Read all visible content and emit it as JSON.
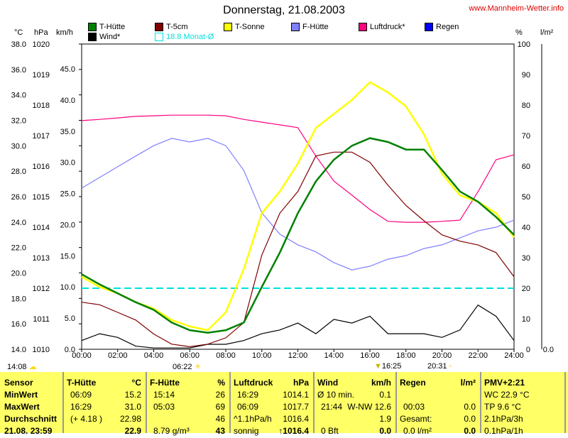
{
  "header": {
    "title": "Donnerstag, 21.08.2003",
    "site": "www.Mannheim-Wetter.info"
  },
  "legend": [
    {
      "label": "T-Hütte",
      "color": "#008000"
    },
    {
      "label": "T-5cm",
      "color": "#800000"
    },
    {
      "label": "T-Sonne",
      "color": "#ffff00"
    },
    {
      "label": "F-Hütte",
      "color": "#8080ff"
    },
    {
      "label": "Luftdruck*",
      "color": "#ff0080"
    },
    {
      "label": "Regen",
      "color": "#0000ff"
    },
    {
      "label": "Wind*",
      "color": "#000000"
    },
    {
      "label": "18.8 Monat-Ø",
      "color": "#00ffff"
    }
  ],
  "axis_units": {
    "c": "°C",
    "hpa": "hPa",
    "kmh": "km/h",
    "pct": "%",
    "rain": "l/m²"
  },
  "chart_data": {
    "type": "line",
    "title": "Donnerstag, 21.08.2003",
    "x_ticks": [
      "00:00",
      "02:00",
      "04:00",
      "06:00",
      "08:00",
      "10:00",
      "12:00",
      "14:00",
      "16:00",
      "18:00",
      "20:00",
      "22:00",
      "24:00"
    ],
    "x_hours": [
      0,
      1,
      2,
      3,
      4,
      5,
      6,
      7,
      8,
      9,
      10,
      11,
      12,
      13,
      14,
      15,
      16,
      17,
      18,
      19,
      20,
      21,
      22,
      23,
      24
    ],
    "y_c_ticks": [
      "14.0",
      "16.0",
      "18.0",
      "20.0",
      "22.0",
      "24.0",
      "26.0",
      "28.0",
      "30.0",
      "32.0",
      "34.0",
      "36.0",
      "38.0"
    ],
    "y_c_range": [
      14,
      38
    ],
    "y_hpa_ticks": [
      "1010",
      "1011",
      "1012",
      "1013",
      "1014",
      "1015",
      "1016",
      "1017",
      "1018",
      "1019",
      "1020"
    ],
    "y_hpa_range": [
      1010,
      1020
    ],
    "y_kmh_ticks": [
      "0.0",
      "5.0",
      "10.0",
      "15.0",
      "20.0",
      "25.0",
      "30.0",
      "35.0",
      "40.0",
      "45.0"
    ],
    "y_kmh_range": [
      0,
      49
    ],
    "y_pct_ticks": [
      "0",
      "10",
      "20",
      "30",
      "40",
      "50",
      "60",
      "70",
      "80",
      "90",
      "100"
    ],
    "y_pct_range": [
      0,
      100
    ],
    "y_rain_ticks": [
      "0.0"
    ],
    "monthly_avg_c": 18.8,
    "series": [
      {
        "name": "F-Hütte",
        "axis": "pct",
        "color": "#8080ff",
        "values": [
          52.8,
          56.3,
          59.8,
          63.3,
          66.7,
          69.1,
          67.9,
          69.1,
          66.7,
          58.6,
          44.7,
          37.7,
          34.2,
          31.9,
          28.4,
          26.0,
          27.2,
          29.5,
          30.7,
          33.0,
          34.2,
          36.5,
          38.8,
          40.0,
          42.3
        ]
      },
      {
        "name": "Luftdruck*",
        "axis": "hpa",
        "color": "#ff0080",
        "values": [
          1017.49,
          1017.53,
          1017.58,
          1017.63,
          1017.65,
          1017.67,
          1017.67,
          1017.67,
          1017.65,
          1017.53,
          1017.44,
          1017.35,
          1017.26,
          1016.33,
          1015.51,
          1015.05,
          1014.58,
          1014.19,
          1014.16,
          1014.16,
          1014.19,
          1014.23,
          1015.16,
          1016.21,
          1016.37
        ]
      },
      {
        "name": "Wind*",
        "axis": "kmh",
        "color": "#000000",
        "values": [
          1.4,
          2.5,
          1.9,
          0.5,
          0.2,
          0.2,
          0.2,
          0.8,
          0.8,
          1.4,
          2.5,
          3.1,
          4.2,
          2.5,
          4.8,
          4.2,
          5.3,
          2.5,
          2.5,
          2.5,
          1.9,
          3.1,
          7.1,
          5.3,
          1.4
        ]
      },
      {
        "name": "T-Sonne",
        "axis": "c",
        "color": "#ffff00",
        "values": [
          19.7,
          18.9,
          18.4,
          17.7,
          17.2,
          16.3,
          15.8,
          15.5,
          16.9,
          20.3,
          24.7,
          26.4,
          28.6,
          31.4,
          32.5,
          33.6,
          35.0,
          34.2,
          33.1,
          30.9,
          27.8,
          26.1,
          25.6,
          24.7,
          22.8
        ]
      },
      {
        "name": "T-5cm",
        "axis": "c",
        "color": "#800000",
        "values": [
          17.7,
          17.5,
          16.9,
          16.3,
          15.2,
          14.4,
          14.2,
          14.4,
          14.9,
          16.1,
          21.4,
          24.7,
          26.4,
          29.2,
          29.5,
          29.5,
          28.7,
          26.9,
          25.3,
          24.1,
          23.0,
          22.5,
          22.2,
          21.6,
          19.7
        ]
      },
      {
        "name": "T-Hütte",
        "axis": "c",
        "color": "#008000",
        "values": [
          19.9,
          19.1,
          18.4,
          17.7,
          17.1,
          16.1,
          15.5,
          15.3,
          15.5,
          16.1,
          18.9,
          21.6,
          24.7,
          27.2,
          28.9,
          30.0,
          30.6,
          30.3,
          29.7,
          29.7,
          28.1,
          26.4,
          25.6,
          24.4,
          23.0
        ]
      }
    ]
  },
  "markers": {
    "sun_cloud": "14:08",
    "sunrise": "06:22",
    "moon": "16:25",
    "sunset": "20:31"
  },
  "table": {
    "sensor": {
      "h": "Sensor",
      "min": "MinWert",
      "max": "MaxWert",
      "avg": "Durchschnitt",
      "cur": "21.08. 23:59"
    },
    "thuette": {
      "h": "T-Hütte",
      "u": "°C",
      "min_t": "06:09",
      "min": "15.2",
      "max_t": "16:29",
      "max": "31.0",
      "avg_t": "(+ 4.18 )",
      "avg": "22.98",
      "cur": "22.9"
    },
    "fhuette": {
      "h": "F-Hütte",
      "u": "%",
      "min_t": "15:14",
      "min": "26",
      "max_t": "05:03",
      "max": "69",
      "avg": "46",
      "cur_t": "8.79 g/m³",
      "cur": "43"
    },
    "luft": {
      "h": "Luftdruck",
      "u": "hPa",
      "min_t": "16:29",
      "min": "1014.1",
      "max_t": "06:09",
      "max": "1017.7",
      "avg_t": "^1.1hPa/h",
      "avg": "1016.4",
      "cur_t": "sonnig",
      "cur": "↑1016.4"
    },
    "wind": {
      "h": "Wind",
      "u": "km/h",
      "min_t": "Ø 10 min.",
      "min": "0.1",
      "max_t": "21:44",
      "max": "W-NW 12.6",
      "avg": "1.9",
      "cur_t": "0 Bft",
      "cur": "0.0"
    },
    "regen": {
      "h": "Regen",
      "u": "l/m²",
      "max_t": "00:03",
      "max": "0.0",
      "avg_t": "Gesamt:",
      "avg": "0.0",
      "cur_t": "0.0 l/m²",
      "cur": "0.0"
    },
    "pmv": {
      "h": "PMV+2:21",
      "r1": "WC 22.9 °C",
      "r2": "TP 9.6 °C",
      "r3": "2.1hPa/3h",
      "r4": "0.1hPa/1h"
    }
  }
}
